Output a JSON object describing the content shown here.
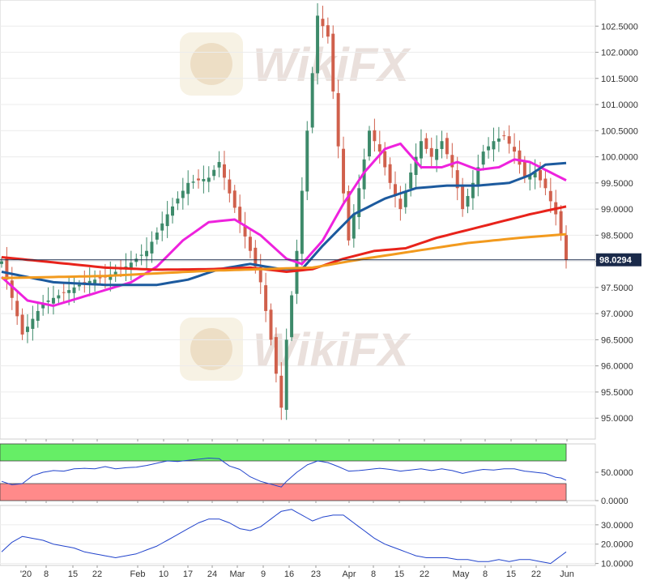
{
  "watermark": {
    "text": "WikiFX",
    "icon": "eagle-logo-icon"
  },
  "colors": {
    "bull": "#3d8a6a",
    "bear": "#d0604c",
    "sma_magenta": "#ee22dd",
    "sma_blue": "#1c5a9e",
    "sma_red": "#e8231b",
    "sma_orange": "#f29a1e",
    "rsi_overbought_fill": "#66ee66",
    "rsi_oversold_fill": "#ff8a8a",
    "indicator_line": "#2244cc",
    "price_line": "#1a2a4a"
  },
  "last_price": {
    "label": "98.0294",
    "value": 98.0294
  },
  "chart_data": [
    {
      "type": "candlestick",
      "title": "",
      "x_tick_labels": [
        "'20",
        "8",
        "15",
        "22",
        "Feb",
        "10",
        "17",
        "24",
        "Mar",
        "9",
        "16",
        "23",
        "Apr",
        "8",
        "15",
        "22",
        "May",
        "8",
        "15",
        "22",
        "Jun"
      ],
      "y_tick_labels": [
        "95.0000",
        "95.5000",
        "96.0000",
        "96.5000",
        "97.0000",
        "97.5000",
        "98.0000",
        "98.5000",
        "99.0000",
        "99.5000",
        "100.0000",
        "100.5000",
        "101.0000",
        "101.5000",
        "102.0000",
        "102.5000"
      ],
      "ylim": [
        94.6,
        103.0
      ],
      "close_anchors": [
        [
          0,
          98.0
        ],
        [
          4,
          96.6
        ],
        [
          8,
          97.2
        ],
        [
          12,
          97.4
        ],
        [
          16,
          97.6
        ],
        [
          20,
          97.7
        ],
        [
          24,
          97.9
        ],
        [
          28,
          98.2
        ],
        [
          32,
          98.9
        ],
        [
          36,
          99.5
        ],
        [
          40,
          99.6
        ],
        [
          42,
          99.9
        ],
        [
          44,
          99.3
        ],
        [
          48,
          98.2
        ],
        [
          50,
          97.6
        ],
        [
          52,
          96.5
        ],
        [
          54,
          95.2
        ],
        [
          55,
          96.5
        ],
        [
          57,
          98.2
        ],
        [
          59,
          100.5
        ],
        [
          61,
          102.7
        ],
        [
          63,
          102.3
        ],
        [
          65,
          100.2
        ],
        [
          67,
          98.4
        ],
        [
          69,
          99.4
        ],
        [
          71,
          100.5
        ],
        [
          73,
          100.1
        ],
        [
          75,
          99.5
        ],
        [
          77,
          99.0
        ],
        [
          79,
          99.7
        ],
        [
          81,
          100.3
        ],
        [
          83,
          100.0
        ],
        [
          85,
          100.3
        ],
        [
          87,
          99.8
        ],
        [
          89,
          99.0
        ],
        [
          91,
          99.5
        ],
        [
          93,
          100.1
        ],
        [
          95,
          100.3
        ],
        [
          97,
          100.4
        ],
        [
          99,
          100.1
        ],
        [
          101,
          99.6
        ],
        [
          103,
          99.7
        ],
        [
          105,
          99.4
        ],
        [
          107,
          98.9
        ],
        [
          108,
          98.5
        ],
        [
          109,
          98.03
        ]
      ],
      "sma_series": [
        {
          "color": "#ee22dd",
          "anchors": [
            [
              0,
              97.7
            ],
            [
              5,
              97.25
            ],
            [
              10,
              97.15
            ],
            [
              15,
              97.3
            ],
            [
              20,
              97.45
            ],
            [
              25,
              97.6
            ],
            [
              30,
              97.9
            ],
            [
              35,
              98.4
            ],
            [
              40,
              98.75
            ],
            [
              45,
              98.8
            ],
            [
              50,
              98.5
            ],
            [
              55,
              98.05
            ],
            [
              58,
              97.95
            ],
            [
              62,
              98.4
            ],
            [
              66,
              99.1
            ],
            [
              70,
              99.7
            ],
            [
              74,
              100.15
            ],
            [
              77,
              100.25
            ],
            [
              81,
              99.8
            ],
            [
              85,
              99.8
            ],
            [
              88,
              99.9
            ],
            [
              92,
              99.75
            ],
            [
              96,
              99.8
            ],
            [
              99,
              99.95
            ],
            [
              102,
              99.9
            ],
            [
              106,
              99.7
            ],
            [
              109,
              99.55
            ]
          ]
        },
        {
          "color": "#1c5a9e",
          "anchors": [
            [
              0,
              97.8
            ],
            [
              10,
              97.6
            ],
            [
              20,
              97.55
            ],
            [
              30,
              97.55
            ],
            [
              36,
              97.65
            ],
            [
              42,
              97.85
            ],
            [
              48,
              97.95
            ],
            [
              54,
              97.85
            ],
            [
              58,
              97.85
            ],
            [
              62,
              98.3
            ],
            [
              68,
              98.9
            ],
            [
              74,
              99.2
            ],
            [
              80,
              99.4
            ],
            [
              86,
              99.45
            ],
            [
              92,
              99.45
            ],
            [
              98,
              99.5
            ],
            [
              102,
              99.65
            ],
            [
              105,
              99.85
            ],
            [
              109,
              99.88
            ]
          ]
        },
        {
          "color": "#e8231b",
          "anchors": [
            [
              0,
              98.08
            ],
            [
              10,
              97.98
            ],
            [
              20,
              97.88
            ],
            [
              30,
              97.84
            ],
            [
              40,
              97.85
            ],
            [
              48,
              97.88
            ],
            [
              55,
              97.8
            ],
            [
              60,
              97.85
            ],
            [
              66,
              98.05
            ],
            [
              72,
              98.2
            ],
            [
              78,
              98.25
            ],
            [
              84,
              98.45
            ],
            [
              90,
              98.6
            ],
            [
              96,
              98.75
            ],
            [
              102,
              98.9
            ],
            [
              109,
              99.05
            ]
          ]
        },
        {
          "color": "#f29a1e",
          "anchors": [
            [
              0,
              97.68
            ],
            [
              20,
              97.72
            ],
            [
              40,
              97.82
            ],
            [
              50,
              97.85
            ],
            [
              60,
              97.88
            ],
            [
              70,
              98.05
            ],
            [
              80,
              98.2
            ],
            [
              90,
              98.35
            ],
            [
              100,
              98.45
            ],
            [
              109,
              98.52
            ]
          ]
        }
      ]
    },
    {
      "type": "line",
      "title": "",
      "y_tick_labels": [
        "0.0000",
        "50.0000"
      ],
      "ylim": [
        0,
        100
      ],
      "bands": [
        {
          "from": 70,
          "to": 100,
          "color": "#66ee66"
        },
        {
          "from": 0,
          "to": 30,
          "color": "#ff8a8a"
        }
      ],
      "series": [
        {
          "color": "#2244cc",
          "anchors": [
            [
              0,
              34
            ],
            [
              2,
              28
            ],
            [
              4,
              30
            ],
            [
              6,
              44
            ],
            [
              8,
              50
            ],
            [
              10,
              53
            ],
            [
              12,
              52
            ],
            [
              14,
              56
            ],
            [
              16,
              57
            ],
            [
              18,
              56
            ],
            [
              20,
              60
            ],
            [
              22,
              56
            ],
            [
              24,
              58
            ],
            [
              26,
              59
            ],
            [
              28,
              62
            ],
            [
              30,
              66
            ],
            [
              32,
              70
            ],
            [
              34,
              69
            ],
            [
              36,
              71
            ],
            [
              38,
              73
            ],
            [
              40,
              75
            ],
            [
              42,
              74
            ],
            [
              44,
              61
            ],
            [
              46,
              55
            ],
            [
              48,
              42
            ],
            [
              50,
              34
            ],
            [
              52,
              29
            ],
            [
              54,
              24
            ],
            [
              55,
              34
            ],
            [
              57,
              50
            ],
            [
              59,
              63
            ],
            [
              61,
              70
            ],
            [
              63,
              67
            ],
            [
              65,
              60
            ],
            [
              67,
              52
            ],
            [
              69,
              53
            ],
            [
              71,
              55
            ],
            [
              73,
              57
            ],
            [
              75,
              55
            ],
            [
              77,
              52
            ],
            [
              79,
              54
            ],
            [
              81,
              56
            ],
            [
              83,
              53
            ],
            [
              85,
              56
            ],
            [
              87,
              53
            ],
            [
              89,
              48
            ],
            [
              91,
              52
            ],
            [
              93,
              55
            ],
            [
              95,
              54
            ],
            [
              97,
              56
            ],
            [
              99,
              56
            ],
            [
              101,
              52
            ],
            [
              103,
              50
            ],
            [
              105,
              48
            ],
            [
              107,
              41
            ],
            [
              108,
              40
            ],
            [
              109,
              36
            ]
          ]
        }
      ]
    },
    {
      "type": "line",
      "title": "",
      "y_tick_labels": [
        "10.0000",
        "20.0000",
        "30.0000"
      ],
      "ylim": [
        9,
        40
      ],
      "series": [
        {
          "color": "#2244cc",
          "anchors": [
            [
              0,
              16
            ],
            [
              2,
              21
            ],
            [
              4,
              24
            ],
            [
              6,
              23
            ],
            [
              8,
              22
            ],
            [
              10,
              20
            ],
            [
              12,
              19
            ],
            [
              14,
              18
            ],
            [
              16,
              16
            ],
            [
              18,
              15
            ],
            [
              20,
              14
            ],
            [
              22,
              13
            ],
            [
              24,
              14
            ],
            [
              26,
              15
            ],
            [
              28,
              17
            ],
            [
              30,
              19
            ],
            [
              32,
              22
            ],
            [
              34,
              25
            ],
            [
              36,
              28
            ],
            [
              38,
              31
            ],
            [
              40,
              33
            ],
            [
              42,
              33
            ],
            [
              44,
              31
            ],
            [
              46,
              28
            ],
            [
              48,
              27
            ],
            [
              50,
              29
            ],
            [
              52,
              33
            ],
            [
              54,
              37
            ],
            [
              56,
              38
            ],
            [
              58,
              35
            ],
            [
              60,
              32
            ],
            [
              62,
              34
            ],
            [
              64,
              35
            ],
            [
              66,
              35
            ],
            [
              68,
              31
            ],
            [
              70,
              27
            ],
            [
              72,
              23
            ],
            [
              74,
              20
            ],
            [
              76,
              18
            ],
            [
              78,
              16
            ],
            [
              80,
              14
            ],
            [
              82,
              13
            ],
            [
              84,
              13
            ],
            [
              86,
              13
            ],
            [
              88,
              12
            ],
            [
              90,
              12
            ],
            [
              92,
              11
            ],
            [
              94,
              11
            ],
            [
              96,
              12
            ],
            [
              98,
              11
            ],
            [
              100,
              12
            ],
            [
              102,
              12
            ],
            [
              104,
              11
            ],
            [
              106,
              10
            ],
            [
              108,
              14
            ],
            [
              109,
              16
            ]
          ]
        }
      ]
    }
  ]
}
